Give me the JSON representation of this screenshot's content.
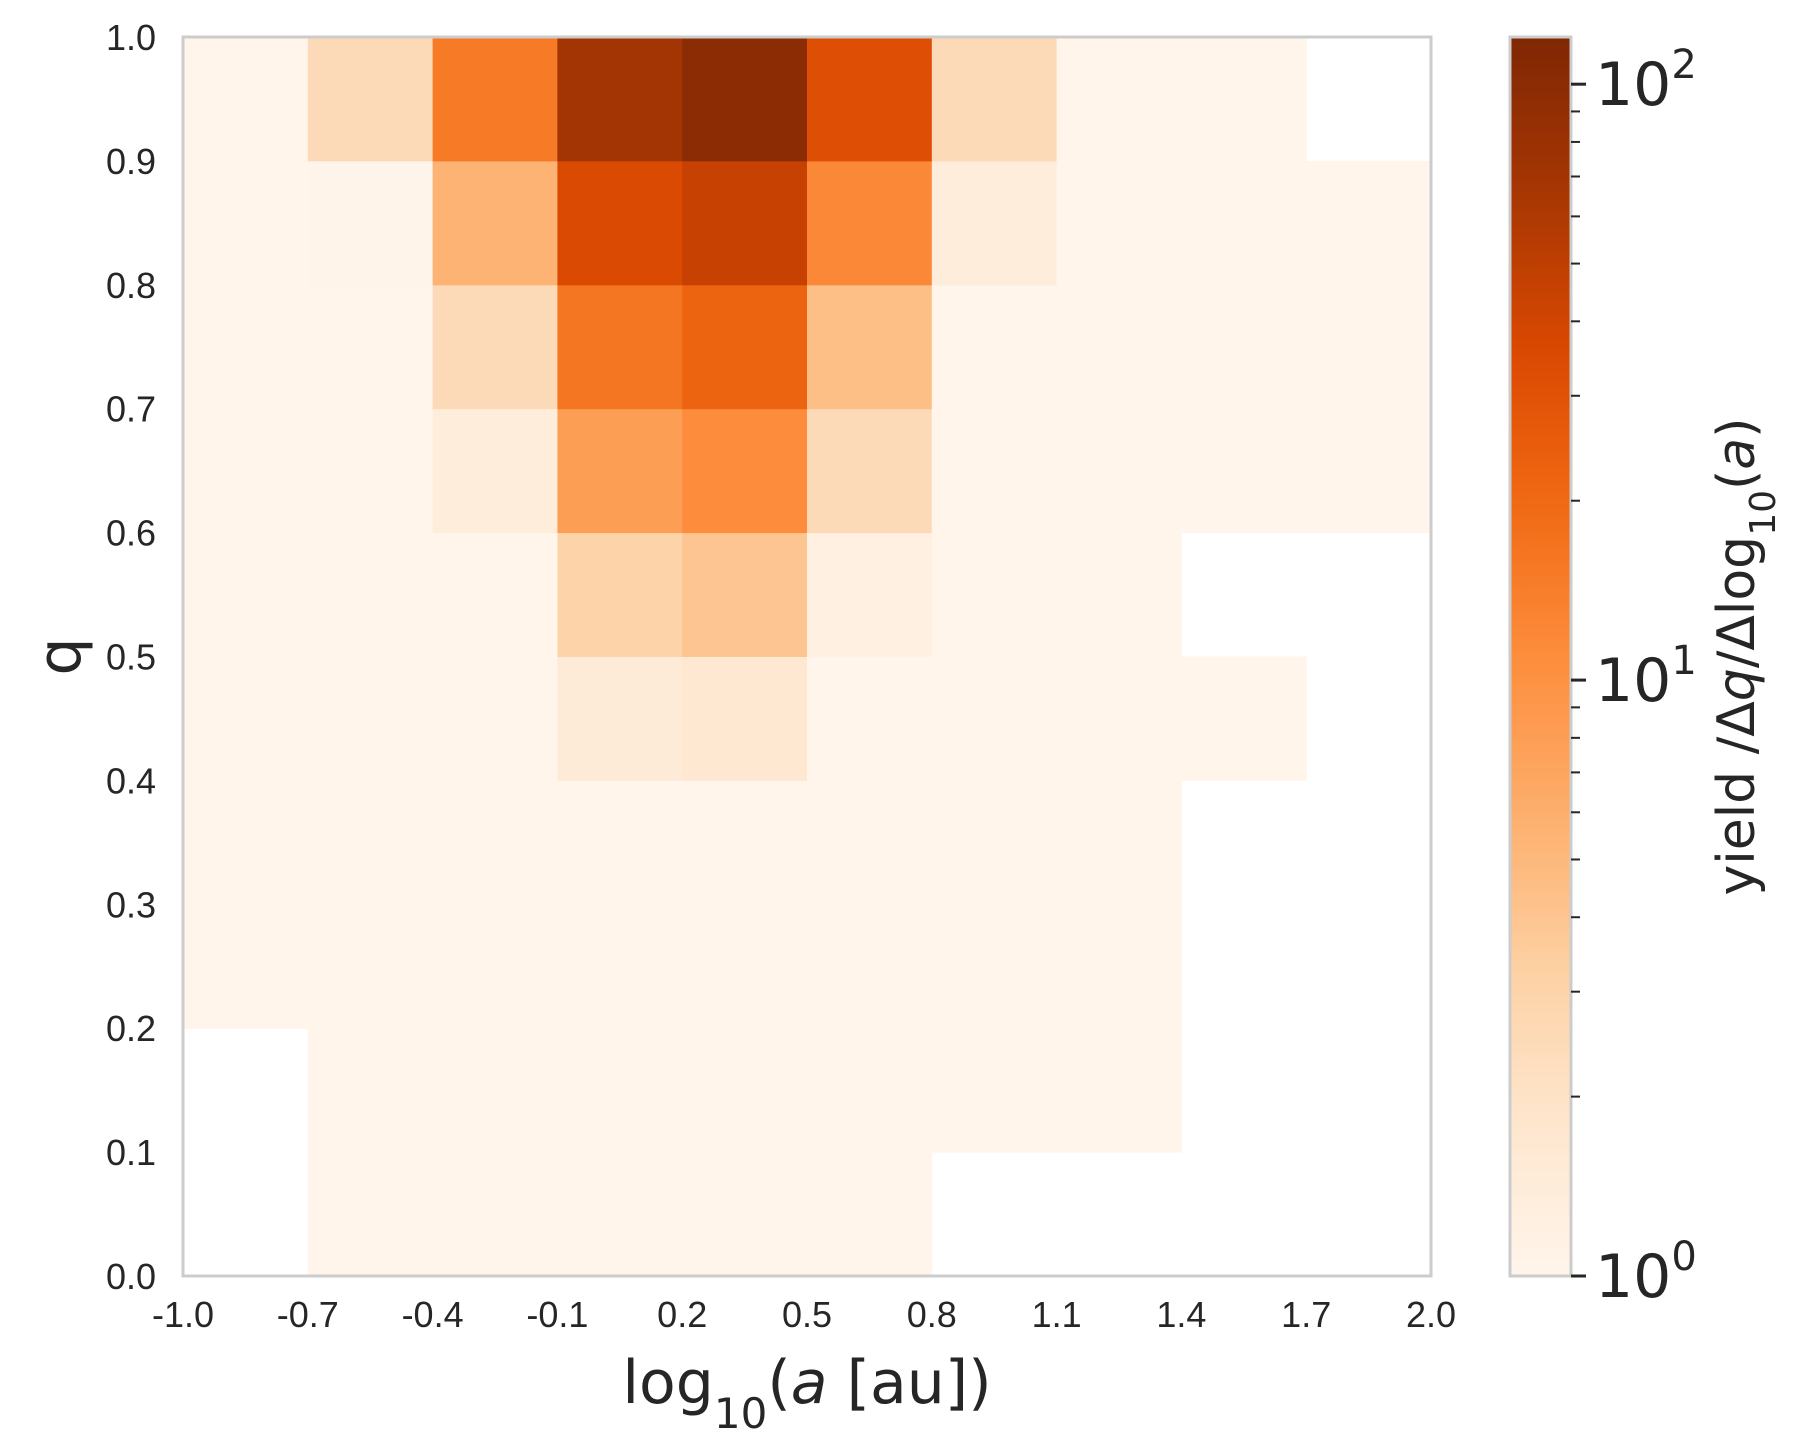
{
  "chart_data": {
    "type": "heatmap",
    "title": "",
    "xlabel": {
      "prefix": "log",
      "sub": "10",
      "open": "(",
      "var": "a",
      "rest": " [au])"
    },
    "ylabel": "q",
    "colorbar_label": {
      "p1": "yield /Δ",
      "v1": "q",
      "p2": "/Δlog",
      "sub": "10",
      "p3": "(",
      "v2": "a",
      "p4": ")"
    },
    "x_edges": [
      -1.0,
      -0.7,
      -0.4,
      -0.1,
      0.2,
      0.5,
      0.8,
      1.1,
      1.4,
      1.7,
      2.0
    ],
    "y_edges": [
      0.0,
      0.1,
      0.2,
      0.3,
      0.4,
      0.5,
      0.6,
      0.7,
      0.8,
      0.9,
      1.0
    ],
    "x_tick_labels": [
      "-1.0",
      "-0.7",
      "-0.4",
      "-0.1",
      "0.2",
      "0.5",
      "0.8",
      "1.1",
      "1.4",
      "1.7",
      "2.0"
    ],
    "y_tick_labels": [
      "0.0",
      "0.1",
      "0.2",
      "0.3",
      "0.4",
      "0.5",
      "0.6",
      "0.7",
      "0.8",
      "0.9",
      "1.0"
    ],
    "xlim": [
      -1.0,
      2.0
    ],
    "ylim": [
      0.0,
      1.0
    ],
    "color_scale": "log",
    "colormap": "Oranges",
    "clim": [
      1,
      120
    ],
    "colorbar_ticks": [
      {
        "base": "10",
        "exp": "0",
        "value": 1
      },
      {
        "base": "10",
        "exp": "1",
        "value": 10
      },
      {
        "base": "10",
        "exp": "2",
        "value": 100
      }
    ],
    "grid": false,
    "values_note_rows": "rows ordered from q=0.0-0.1 (bottom) to q=0.9-1.0 (top); null = empty bin",
    "values": [
      [
        null,
        1.0,
        1.0,
        1.0,
        1.0,
        1.0,
        null,
        null,
        null,
        null
      ],
      [
        null,
        1.0,
        1.0,
        1.0,
        1.0,
        1.0,
        1.0,
        1.0,
        null,
        null
      ],
      [
        1.0,
        1.0,
        1.0,
        1.0,
        1.0,
        1.0,
        1.0,
        1.0,
        null,
        null
      ],
      [
        1.0,
        1.0,
        1.0,
        1.0,
        1.0,
        1.0,
        1.0,
        1.0,
        null,
        null
      ],
      [
        1.0,
        1.0,
        1.0,
        1.5,
        1.7,
        1.0,
        1.0,
        1.0,
        1.0,
        null
      ],
      [
        1.0,
        1.0,
        1.0,
        3.0,
        4.0,
        1.2,
        1.0,
        1.0,
        null,
        null
      ],
      [
        1.0,
        1.0,
        1.4,
        8.0,
        11.0,
        2.5,
        1.0,
        1.0,
        1.0,
        1.0
      ],
      [
        1.0,
        1.0,
        2.5,
        16.0,
        22.0,
        4.5,
        1.0,
        1.0,
        1.0,
        1.0
      ],
      [
        1.0,
        1.05,
        5.5,
        35.0,
        45.0,
        12.0,
        1.4,
        1.0,
        1.0,
        1.0
      ],
      [
        1.0,
        2.5,
        15.0,
        70.0,
        100.0,
        32.0,
        2.5,
        1.0,
        1.0,
        null
      ]
    ]
  }
}
